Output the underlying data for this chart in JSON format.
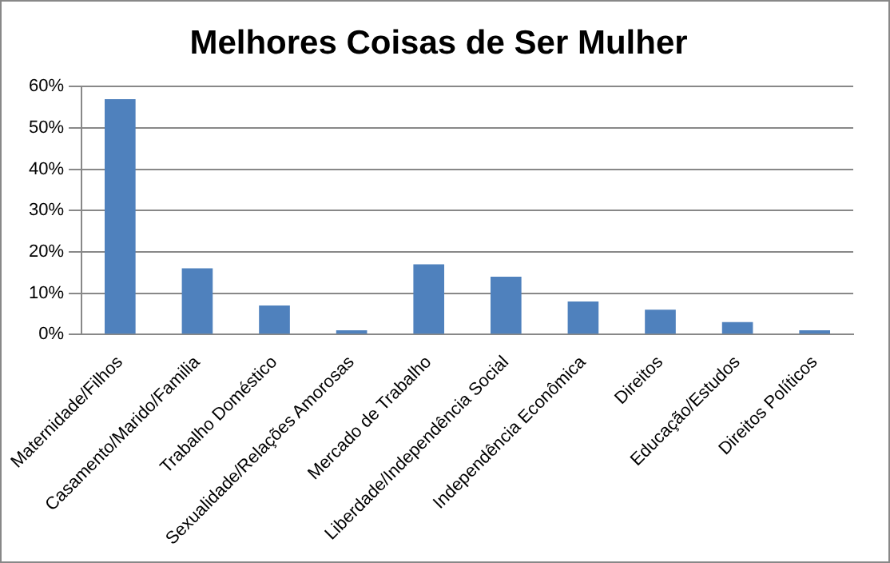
{
  "chart_data": {
    "type": "bar",
    "title": "Melhores Coisas de Ser Mulher",
    "categories": [
      "Maternidade/Filhos",
      "Casamento/Marido/Familia",
      "Trabalho Doméstico",
      "Sexualidade/Relações Amorosas",
      "Mercado de Trabalho",
      "Liberdade/Independência Social",
      "Independência Econômica",
      "Direitos",
      "Educação/Estudos",
      "Direitos Políticos"
    ],
    "values": [
      57,
      16,
      7,
      1,
      17,
      14,
      8,
      6,
      3,
      1
    ],
    "color": "#4f81bd",
    "ylim": [
      0,
      60
    ],
    "yticks": [
      {
        "value": 0,
        "label": "0%"
      },
      {
        "value": 10,
        "label": "10%"
      },
      {
        "value": 20,
        "label": "20%"
      },
      {
        "value": 30,
        "label": "30%"
      },
      {
        "value": 40,
        "label": "40%"
      },
      {
        "value": 50,
        "label": "50%"
      },
      {
        "value": 60,
        "label": "60%"
      }
    ],
    "grid": "y",
    "legend": false
  }
}
